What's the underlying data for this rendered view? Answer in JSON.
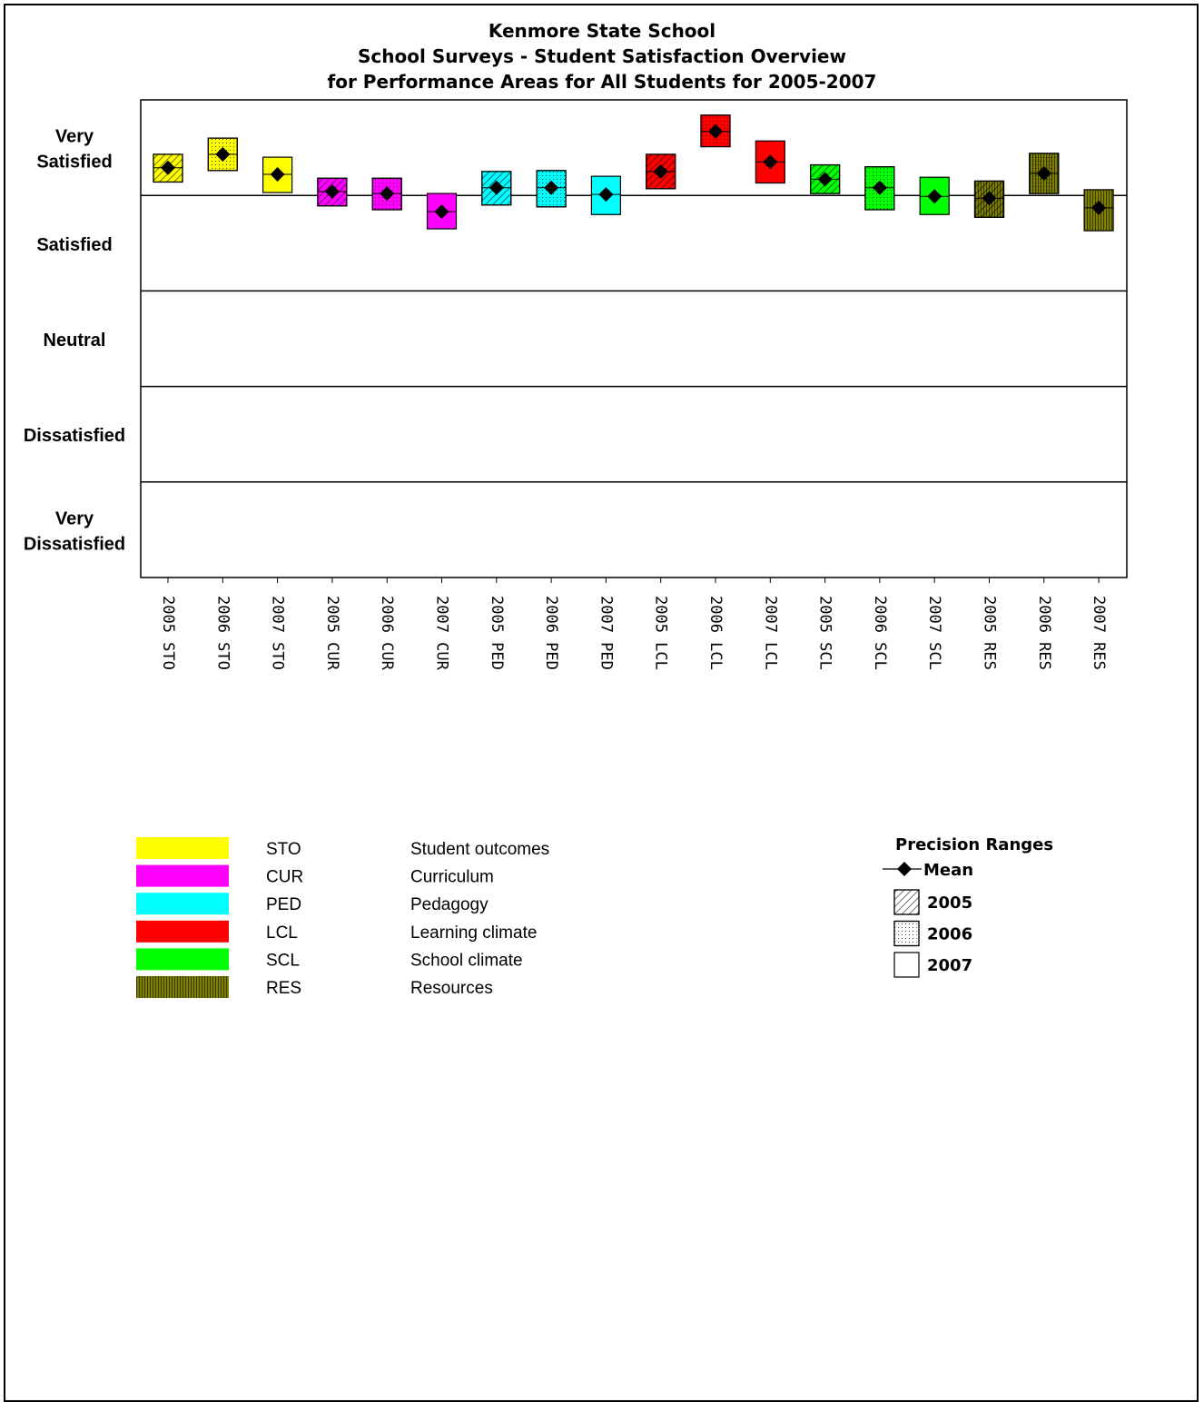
{
  "title_lines": [
    "Kenmore State School",
    "School Surveys - Student Satisfaction Overview",
    "for Performance Areas for All Students for 2005-2007"
  ],
  "chart_data": {
    "type": "box",
    "title": "Kenmore State School / School Surveys - Student Satisfaction Overview / for Performance Areas for All Students for 2005-2007",
    "y_scale": [
      {
        "label": "Very Satisfied",
        "value": 5
      },
      {
        "label": "Satisfied",
        "value": 4
      },
      {
        "label": "Neutral",
        "value": 3
      },
      {
        "label": "Dissatisfied",
        "value": 2
      },
      {
        "label": "Very Dissatisfied",
        "value": 1
      }
    ],
    "ylim": [
      0.5,
      5.5
    ],
    "grid": true,
    "categories": [
      "2005 STO",
      "2006 STO",
      "2007 STO",
      "2005 CUR",
      "2006 CUR",
      "2007 CUR",
      "2005 PED",
      "2006 PED",
      "2007 PED",
      "2005 LCL",
      "2006 LCL",
      "2007 LCL",
      "2005 SCL",
      "2006 SCL",
      "2007 SCL",
      "2005 RES",
      "2006 RES",
      "2007 RES"
    ],
    "points": [
      {
        "year": "2005",
        "area": "STO",
        "mean": 4.79,
        "low": 4.64,
        "high": 4.93
      },
      {
        "year": "2006",
        "area": "STO",
        "mean": 4.93,
        "low": 4.76,
        "high": 5.1
      },
      {
        "year": "2007",
        "area": "STO",
        "mean": 4.72,
        "low": 4.53,
        "high": 4.9
      },
      {
        "year": "2005",
        "area": "CUR",
        "mean": 4.54,
        "low": 4.39,
        "high": 4.68
      },
      {
        "year": "2006",
        "area": "CUR",
        "mean": 4.52,
        "low": 4.35,
        "high": 4.68
      },
      {
        "year": "2007",
        "area": "CUR",
        "mean": 4.33,
        "low": 4.15,
        "high": 4.52
      },
      {
        "year": "2005",
        "area": "PED",
        "mean": 4.58,
        "low": 4.4,
        "high": 4.75
      },
      {
        "year": "2006",
        "area": "PED",
        "mean": 4.58,
        "low": 4.38,
        "high": 4.76
      },
      {
        "year": "2007",
        "area": "PED",
        "mean": 4.51,
        "low": 4.3,
        "high": 4.7
      },
      {
        "year": "2005",
        "area": "LCL",
        "mean": 4.75,
        "low": 4.57,
        "high": 4.93
      },
      {
        "year": "2006",
        "area": "LCL",
        "mean": 5.17,
        "low": 5.01,
        "high": 5.34
      },
      {
        "year": "2007",
        "area": "LCL",
        "mean": 4.85,
        "low": 4.63,
        "high": 5.07
      },
      {
        "year": "2005",
        "area": "SCL",
        "mean": 4.67,
        "low": 4.52,
        "high": 4.82
      },
      {
        "year": "2006",
        "area": "SCL",
        "mean": 4.58,
        "low": 4.35,
        "high": 4.8
      },
      {
        "year": "2007",
        "area": "SCL",
        "mean": 4.49,
        "low": 4.3,
        "high": 4.69
      },
      {
        "year": "2005",
        "area": "RES",
        "mean": 4.47,
        "low": 4.27,
        "high": 4.65
      },
      {
        "year": "2006",
        "area": "RES",
        "mean": 4.73,
        "low": 4.52,
        "high": 4.94
      },
      {
        "year": "2007",
        "area": "RES",
        "mean": 4.37,
        "low": 4.13,
        "high": 4.56
      }
    ],
    "area_colors": {
      "STO": "#ffff00",
      "CUR": "#ff00ff",
      "PED": "#00ffff",
      "LCL": "#ff0000",
      "SCL": "#00ff00",
      "RES": "#808000"
    },
    "year_patterns": {
      "2005": "hatch",
      "2006": "dots",
      "2007": "plain"
    },
    "res_fill_pattern": "vertical-stripes"
  },
  "legend_areas": [
    {
      "code": "STO",
      "name": "Student outcomes",
      "color": "#ffff00"
    },
    {
      "code": "CUR",
      "name": "Curriculum",
      "color": "#ff00ff"
    },
    {
      "code": "PED",
      "name": "Pedagogy",
      "color": "#00ffff"
    },
    {
      "code": "LCL",
      "name": "Learning climate",
      "color": "#ff0000"
    },
    {
      "code": "SCL",
      "name": "School climate",
      "color": "#00ff00"
    },
    {
      "code": "RES",
      "name": "Resources",
      "color": "#808000"
    }
  ],
  "precision_legend": {
    "title": "Precision Ranges",
    "mean_label": "Mean",
    "years": [
      "2005",
      "2006",
      "2007"
    ]
  }
}
